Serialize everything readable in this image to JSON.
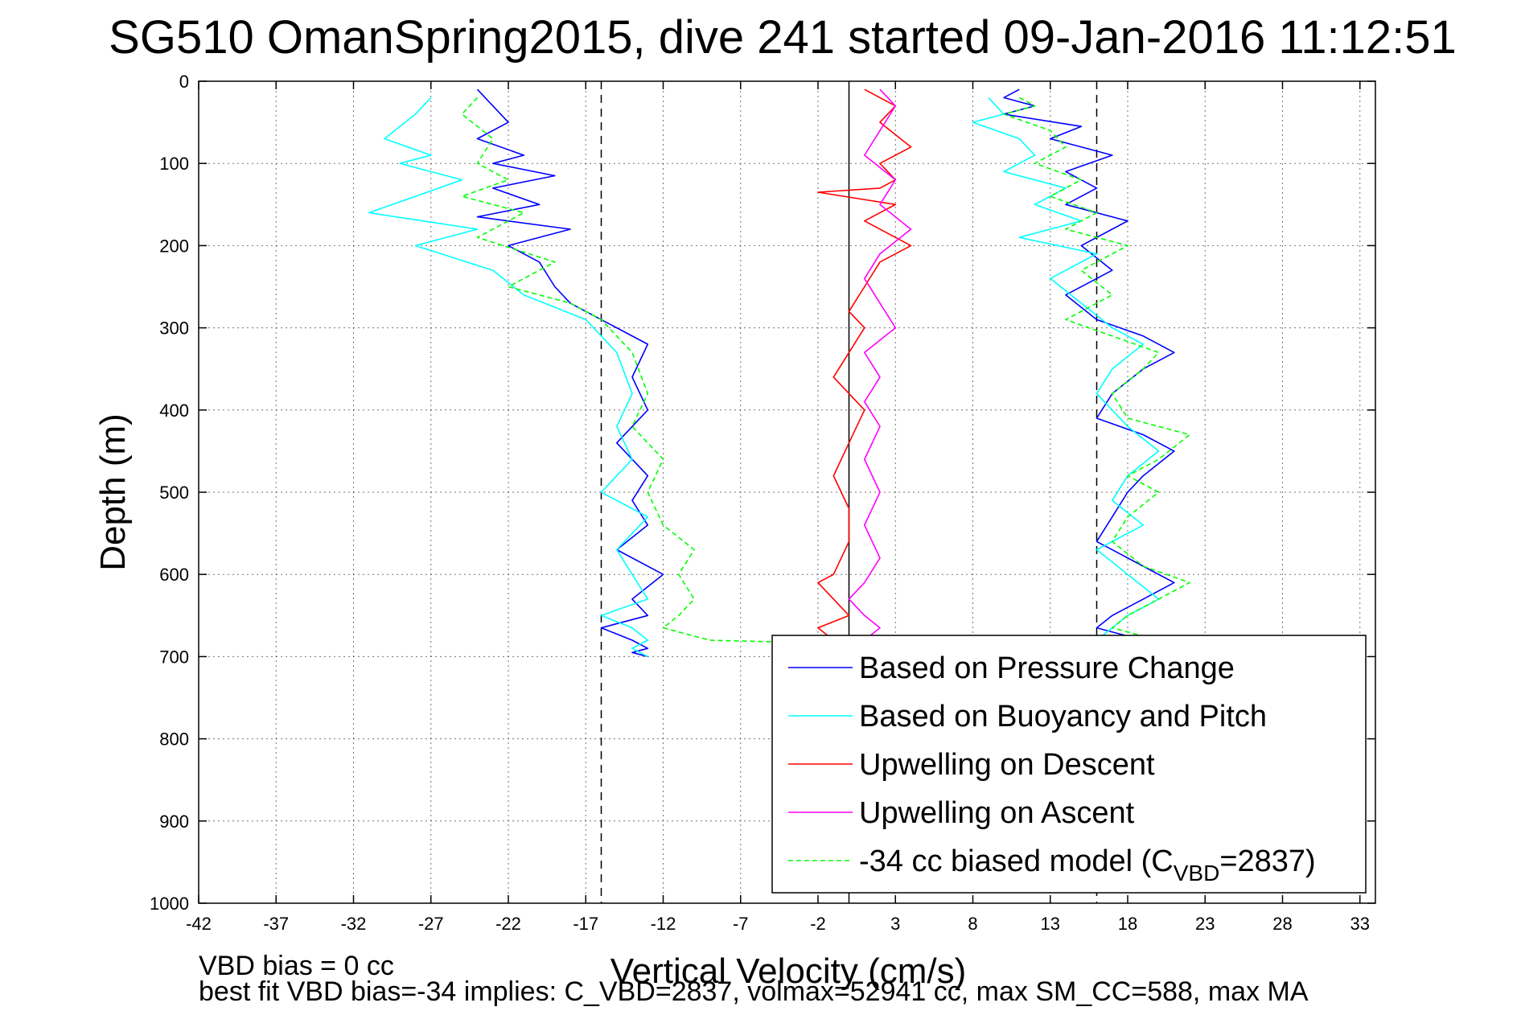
{
  "chart_data": {
    "type": "line",
    "title": "SG510 OmanSpring2015, dive 241 started 09-Jan-2016 11:12:51",
    "xlabel": "Vertical Velocity (cm/s)",
    "ylabel": "Depth (m)",
    "xlim": [
      -42,
      34
    ],
    "ylim": [
      0,
      1000
    ],
    "y_reversed": true,
    "grid": true,
    "xticks": [
      "-42",
      "-37",
      "-32",
      "-27",
      "-22",
      "-17",
      "-12",
      "-7",
      "-2",
      "3",
      "8",
      "13",
      "18",
      "23",
      "28",
      "33"
    ],
    "yticks": [
      "0",
      "100",
      "200",
      "300",
      "400",
      "500",
      "600",
      "700",
      "800",
      "900",
      "1000"
    ],
    "legend": {
      "placement": "bottom-right",
      "entries": [
        {
          "label": "Based on Pressure Change",
          "color": "#0000ff",
          "style": "solid"
        },
        {
          "label": "Based on Buoyancy and Pitch",
          "color": "#00ffff",
          "style": "solid"
        },
        {
          "label": "Upwelling on Descent",
          "color": "#ff0000",
          "style": "solid"
        },
        {
          "label": "Upwelling on Ascent",
          "color": "#ff00ff",
          "style": "solid"
        },
        {
          "label": "-34 cc biased model (C",
          "sub": "VBD",
          "suffix": "=2837)",
          "color": "#00ff00",
          "style": "dashed"
        }
      ]
    },
    "reference_lines": [
      {
        "x": -16,
        "style": "dashed",
        "color": "#000000"
      },
      {
        "x": 0,
        "style": "solid",
        "color": "#000000"
      },
      {
        "x": 16,
        "style": "dashed",
        "color": "#000000"
      }
    ],
    "series": [
      {
        "color": "#0000ff",
        "style": "solid",
        "x": [
          -24,
          -23,
          -22,
          -24,
          -21,
          -23,
          -19,
          -23,
          -20,
          -24,
          -18,
          -22,
          -20,
          -19,
          -18,
          -16,
          -13,
          -14,
          -13,
          -15,
          -13,
          -14,
          -13,
          -15,
          -12,
          -14,
          -13,
          -16,
          -14,
          -13,
          -14,
          -13
        ],
        "y": [
          10,
          30,
          50,
          70,
          90,
          100,
          115,
          130,
          150,
          165,
          180,
          200,
          220,
          250,
          270,
          290,
          320,
          360,
          400,
          440,
          480,
          510,
          540,
          570,
          600,
          630,
          650,
          665,
          680,
          690,
          695,
          700
        ]
      },
      {
        "color": "#00ffff",
        "style": "solid",
        "x": [
          -27,
          -28,
          -30,
          -27,
          -29,
          -25,
          -28,
          -31,
          -24,
          -28,
          -23,
          -21,
          -17,
          -15,
          -14,
          -15,
          -14,
          -16,
          -13,
          -15,
          -14,
          -13,
          -16,
          -14,
          -13,
          -14,
          -13
        ],
        "y": [
          20,
          40,
          70,
          90,
          100,
          120,
          140,
          160,
          180,
          200,
          230,
          260,
          290,
          330,
          380,
          420,
          460,
          500,
          530,
          570,
          600,
          630,
          650,
          665,
          680,
          690,
          700
        ]
      },
      {
        "color": "#00ff00",
        "style": "dashed",
        "x": [
          -24,
          -25,
          -23,
          -24,
          -22,
          -25,
          -21,
          -24,
          -19,
          -22,
          -18,
          -16,
          -14,
          -13,
          -14,
          -12,
          -13,
          -12,
          -10,
          -11,
          -10,
          -11,
          -12,
          -10,
          -9,
          -3
        ],
        "y": [
          20,
          40,
          70,
          100,
          120,
          140,
          160,
          190,
          220,
          250,
          270,
          290,
          330,
          380,
          420,
          460,
          500,
          540,
          570,
          600,
          630,
          650,
          665,
          675,
          680,
          683
        ]
      },
      {
        "color": "#ff0000",
        "style": "solid",
        "x": [
          1,
          3,
          2,
          4,
          2,
          3,
          2,
          -2,
          3,
          1,
          4,
          2,
          1,
          0,
          1,
          0,
          -1,
          1,
          0,
          -1,
          0,
          0,
          -1,
          -2,
          -1,
          0,
          -2,
          -1
        ],
        "y": [
          10,
          30,
          50,
          80,
          100,
          120,
          130,
          135,
          150,
          170,
          200,
          220,
          250,
          280,
          300,
          330,
          360,
          400,
          440,
          480,
          520,
          560,
          600,
          610,
          630,
          650,
          665,
          680
        ]
      },
      {
        "color": "#ff00ff",
        "style": "solid",
        "x": [
          2,
          3,
          2,
          1,
          3,
          2,
          4,
          2,
          1,
          2,
          3,
          1,
          2,
          1,
          2,
          1,
          2,
          1,
          2,
          1,
          0,
          1,
          2,
          1
        ],
        "y": [
          10,
          30,
          60,
          90,
          120,
          150,
          180,
          210,
          240,
          270,
          300,
          330,
          360,
          390,
          420,
          460,
          500,
          540,
          580,
          610,
          630,
          650,
          665,
          680
        ]
      },
      {
        "color": "#0000ff",
        "style": "solid",
        "x": [
          11,
          10,
          12,
          10,
          15,
          13,
          17,
          14,
          16,
          14,
          18,
          15,
          17,
          14,
          16,
          19,
          21,
          19,
          17,
          16,
          19,
          21,
          19,
          18,
          17,
          16,
          19,
          21,
          19,
          17,
          16,
          18
        ],
        "y": [
          10,
          20,
          30,
          40,
          55,
          70,
          90,
          110,
          130,
          150,
          170,
          200,
          230,
          260,
          290,
          310,
          330,
          350,
          380,
          410,
          430,
          450,
          480,
          500,
          530,
          560,
          590,
          610,
          630,
          650,
          665,
          675
        ]
      },
      {
        "color": "#00ffff",
        "style": "solid",
        "x": [
          9,
          10,
          8,
          11,
          12,
          10,
          14,
          12,
          15,
          11,
          16,
          13,
          15,
          17,
          19,
          17,
          16,
          18,
          20,
          18,
          17,
          19,
          16,
          18,
          20,
          18,
          17,
          16
        ],
        "y": [
          20,
          40,
          50,
          70,
          90,
          110,
          130,
          150,
          170,
          190,
          210,
          240,
          270,
          300,
          320,
          350,
          380,
          420,
          450,
          480,
          510,
          540,
          570,
          600,
          630,
          650,
          665,
          680
        ]
      },
      {
        "color": "#00ff00",
        "style": "dashed",
        "x": [
          11,
          12,
          10,
          13,
          14,
          12,
          15,
          13,
          16,
          14,
          18,
          15,
          17,
          14,
          17,
          20,
          19,
          17,
          18,
          22,
          20,
          18,
          20,
          18,
          17,
          19,
          22,
          20,
          18,
          17,
          19
        ],
        "y": [
          20,
          30,
          40,
          60,
          80,
          100,
          120,
          140,
          160,
          180,
          200,
          230,
          260,
          290,
          310,
          330,
          350,
          380,
          410,
          430,
          460,
          480,
          500,
          530,
          560,
          590,
          610,
          630,
          650,
          665,
          675
        ]
      }
    ]
  },
  "footer": {
    "line1": "VBD bias = 0 cc",
    "line2": "best fit VBD bias=-34 implies: C_VBD=2837, volmax=52941 cc, max SM_CC=588, max MA"
  }
}
